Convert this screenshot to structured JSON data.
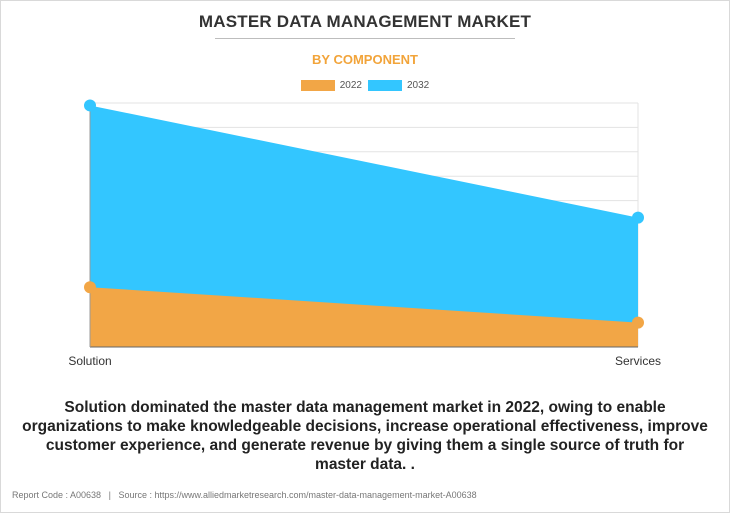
{
  "chart_data": {
    "type": "area",
    "title": "MASTER DATA MANAGEMENT MARKET",
    "subtitle": "BY COMPONENT",
    "categories": [
      "Solution",
      "Services"
    ],
    "series": [
      {
        "name": "2022",
        "color": "#f2a646",
        "values": [
          2.45,
          1.0
        ]
      },
      {
        "name": "2032",
        "color": "#33c6ff",
        "values": [
          9.9,
          5.3
        ]
      }
    ],
    "ylim": [
      0,
      10
    ],
    "grid": true,
    "legend_position": "top-center",
    "xlabel": "",
    "ylabel": ""
  },
  "caption": "Solution dominated the master data management market in 2022, owing to enable organizations to make knowledgeable decisions, increase operational effectiveness, improve customer experience, and generate revenue by giving them a single source of truth for master data. .",
  "footer": {
    "report_code_label": "Report Code : A00638",
    "separator": "|",
    "source_label": "Source : https://www.alliedmarketresearch.com/master-data-management-market-A00638"
  }
}
